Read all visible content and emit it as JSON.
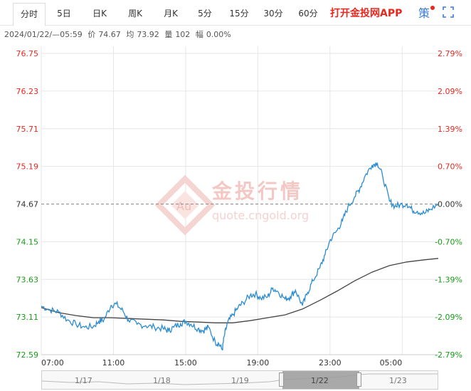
{
  "toolbar": {
    "tabs": [
      {
        "label": "分时",
        "active": true
      },
      {
        "label": "5日"
      },
      {
        "label": "日K"
      },
      {
        "label": "周K"
      },
      {
        "label": "月K"
      },
      {
        "label": "5分"
      },
      {
        "label": "15分"
      },
      {
        "label": "30分"
      },
      {
        "label": "60分"
      }
    ],
    "app_label": "打开金投网APP",
    "strategy_label": "策",
    "fullscreen_icon": "fullscreen-icon"
  },
  "info": {
    "datetime": "2024/01/22/—05:59",
    "price_label": "价",
    "price": "74.67",
    "avg_label": "均",
    "avg": "73.92",
    "volume_label": "量",
    "volume": "102",
    "change_label": "幅",
    "change": "0.00%"
  },
  "watermark": {
    "logo_text": "Au",
    "name": "金投行情",
    "url": "quote.cngold.org"
  },
  "colors": {
    "price_line": "#2b8ccf",
    "avg_line": "#444444",
    "up": "#e8271f",
    "down": "#169c16",
    "grid": "#e6e6e6"
  },
  "chart_data": {
    "type": "line",
    "reference_price": 74.67,
    "price_axis": [
      "76.75",
      "76.23",
      "75.71",
      "75.19",
      "74.67",
      "74.15",
      "73.63",
      "73.11",
      "72.59"
    ],
    "percent_axis": [
      "2.79%",
      "2.09%",
      "1.39%",
      "0.70%",
      "0.00%",
      "-0.70%",
      "-1.39%",
      "-2.09%",
      "-2.79%"
    ],
    "ylim": [
      72.59,
      76.75
    ],
    "x_ticks": [
      "07:00",
      "11:00",
      "15:00",
      "19:00",
      "23:00",
      "05:00"
    ],
    "series": [
      {
        "type": "price",
        "points": [
          [
            0,
            73.26
          ],
          [
            0.5,
            73.21
          ],
          [
            1,
            73.18
          ],
          [
            1.5,
            73.07
          ],
          [
            2,
            73.01
          ],
          [
            2.5,
            72.97
          ],
          [
            3,
            72.98
          ],
          [
            3.3,
            73.05
          ],
          [
            3.6,
            73.07
          ],
          [
            4,
            73.27
          ],
          [
            4.3,
            73.29
          ],
          [
            4.7,
            73.19
          ],
          [
            5,
            73.07
          ],
          [
            5.5,
            73.01
          ],
          [
            6,
            72.99
          ],
          [
            6.5,
            72.97
          ],
          [
            7,
            72.95
          ],
          [
            7.3,
            72.92
          ],
          [
            7.6,
            72.97
          ],
          [
            8,
            73.02
          ],
          [
            8.3,
            73.05
          ],
          [
            8.6,
            73.01
          ],
          [
            9,
            72.95
          ],
          [
            9.3,
            72.92
          ],
          [
            9.6,
            72.97
          ],
          [
            10,
            72.76
          ],
          [
            10.2,
            72.74
          ],
          [
            10.4,
            72.66
          ],
          [
            10.5,
            72.84
          ],
          [
            10.7,
            73.03
          ],
          [
            11,
            73.14
          ],
          [
            11.3,
            73.24
          ],
          [
            11.6,
            73.31
          ],
          [
            12,
            73.41
          ],
          [
            12.3,
            73.43
          ],
          [
            12.6,
            73.37
          ],
          [
            13,
            73.39
          ],
          [
            13.3,
            73.51
          ],
          [
            13.6,
            73.46
          ],
          [
            14,
            73.36
          ],
          [
            14.3,
            73.39
          ],
          [
            14.6,
            73.48
          ],
          [
            15,
            73.27
          ],
          [
            15.3,
            73.45
          ],
          [
            15.6,
            73.61
          ],
          [
            16,
            73.79
          ],
          [
            16.3,
            73.97
          ],
          [
            16.6,
            74.18
          ],
          [
            17,
            74.31
          ],
          [
            17.3,
            74.44
          ],
          [
            17.6,
            74.62
          ],
          [
            18,
            74.77
          ],
          [
            18.3,
            74.89
          ],
          [
            18.6,
            75.06
          ],
          [
            19,
            75.21
          ],
          [
            19.3,
            75.24
          ],
          [
            19.6,
            75.06
          ],
          [
            20,
            74.71
          ],
          [
            20.3,
            74.64
          ],
          [
            20.6,
            74.66
          ],
          [
            21,
            74.67
          ],
          [
            21.3,
            74.59
          ],
          [
            21.6,
            74.57
          ],
          [
            22,
            74.54
          ],
          [
            22.3,
            74.59
          ],
          [
            22.8,
            74.67
          ]
        ]
      },
      {
        "type": "average",
        "points": [
          [
            0,
            73.24
          ],
          [
            1,
            73.17
          ],
          [
            2,
            73.13
          ],
          [
            3,
            73.1
          ],
          [
            4,
            73.1
          ],
          [
            5,
            73.09
          ],
          [
            6,
            73.08
          ],
          [
            7,
            73.07
          ],
          [
            8,
            73.05
          ],
          [
            9,
            73.04
          ],
          [
            10,
            73.03
          ],
          [
            11,
            73.03
          ],
          [
            12,
            73.06
          ],
          [
            13,
            73.1
          ],
          [
            14,
            73.14
          ],
          [
            15,
            73.22
          ],
          [
            16,
            73.34
          ],
          [
            17,
            73.47
          ],
          [
            18,
            73.61
          ],
          [
            19,
            73.73
          ],
          [
            20,
            73.82
          ],
          [
            21,
            73.87
          ],
          [
            22,
            73.9
          ],
          [
            22.8,
            73.92
          ]
        ]
      }
    ]
  },
  "navigator": {
    "dates": [
      "1/17",
      "1/18",
      "1/19",
      "1/22",
      "1/23"
    ]
  }
}
